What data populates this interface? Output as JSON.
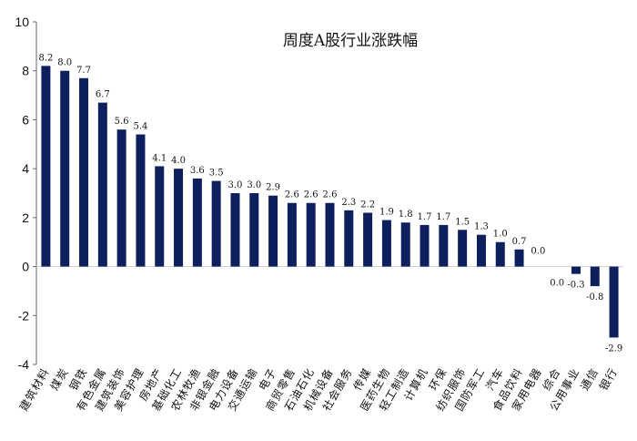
{
  "chart_data": {
    "type": "bar",
    "title": "周度A股行业涨跌幅",
    "xlabel": "",
    "ylabel": "",
    "ylim": [
      -4,
      10
    ],
    "yticks": [
      -4,
      -2,
      0,
      2,
      4,
      6,
      8,
      10
    ],
    "grid": false,
    "legend": "none",
    "bar_color": "#0d1f5c",
    "categories": [
      "建筑材料",
      "煤炭",
      "钢铁",
      "有色金属",
      "建筑装饰",
      "美容护理",
      "房地产",
      "基础化工",
      "农林牧渔",
      "非银金融",
      "电力设备",
      "交通运输",
      "电子",
      "商贸零售",
      "石油石化",
      "机械设备",
      "社会服务",
      "传媒",
      "医药生物",
      "轻工制造",
      "计算机",
      "环保",
      "纺织服饰",
      "国防军工",
      "汽车",
      "食品饮料",
      "家用电器",
      "综合",
      "公用事业",
      "通信",
      "银行"
    ],
    "values": [
      8.2,
      8.0,
      7.7,
      6.7,
      5.6,
      5.4,
      4.1,
      4.0,
      3.6,
      3.5,
      3.0,
      3.0,
      2.9,
      2.6,
      2.6,
      2.6,
      2.3,
      2.2,
      1.9,
      1.8,
      1.7,
      1.7,
      1.5,
      1.3,
      1.0,
      0.7,
      0.0,
      0.0,
      -0.3,
      -0.8,
      -2.9
    ],
    "value_labels": [
      "8.2",
      "8.0",
      "7.7",
      "6.7",
      "5.6",
      "5.4",
      "4.1",
      "4.0",
      "3.6",
      "3.5",
      "3.0",
      "3.0",
      "2.9",
      "2.6",
      "2.6",
      "2.6",
      "2.3",
      "2.2",
      "1.9",
      "1.8",
      "1.7",
      "1.7",
      "1.5",
      "1.3",
      "1.0",
      "0.7",
      "0.0",
      "0.0",
      "-0.3",
      "-0.8",
      "-2.9"
    ]
  }
}
